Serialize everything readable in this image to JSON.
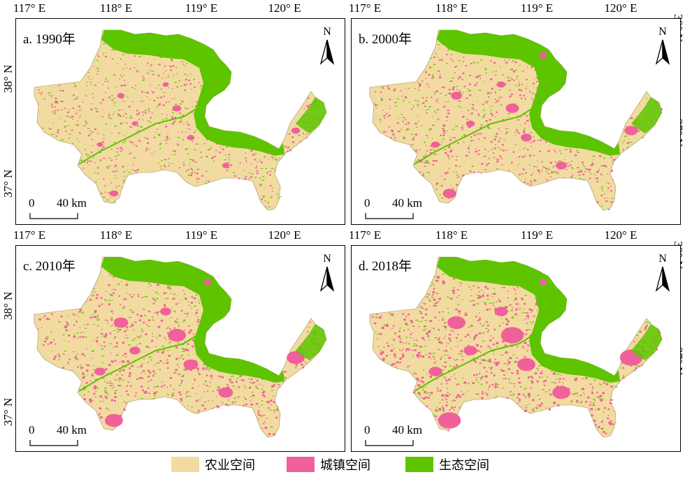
{
  "colors": {
    "agriculture": "#f2dba0",
    "urban": "#f0609a",
    "ecology": "#5ec400"
  },
  "lon_ticks": [
    "117° E",
    "118° E",
    "119° E",
    "120° E"
  ],
  "lat_ticks": {
    "north": "38° N",
    "south": "37° N"
  },
  "north_label": "N",
  "scale": {
    "zero": "0",
    "distance": "40 km"
  },
  "panels": [
    {
      "label": "a. 1990年",
      "urban_level": 1
    },
    {
      "label": "b. 2000年",
      "urban_level": 2
    },
    {
      "label": "c. 2010年",
      "urban_level": 3
    },
    {
      "label": "d. 2018年",
      "urban_level": 4
    }
  ],
  "legend": [
    {
      "label": "农业空间",
      "color": "#f2dba0"
    },
    {
      "label": "城镇空间",
      "color": "#f0609a"
    },
    {
      "label": "生态空间",
      "color": "#5ec400"
    }
  ]
}
